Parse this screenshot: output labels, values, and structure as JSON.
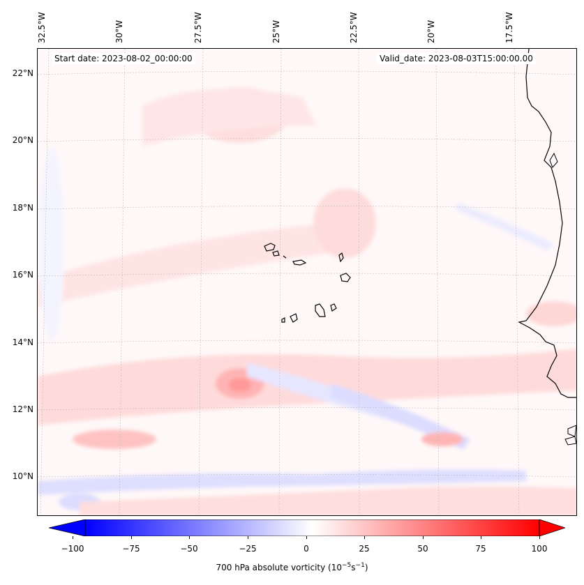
{
  "map": {
    "start_date": "Start date: 2023-08-02_00:00:00",
    "valid_date": "Valid_date: 2023-08-03T15:00:00.00",
    "longitude_labels": [
      "32.5°W",
      "30°W",
      "27.5°W",
      "25°W",
      "22.5°W",
      "20°W",
      "17.5°W"
    ],
    "latitude_labels": [
      "22°N",
      "20°N",
      "18°N",
      "16°N",
      "14°N",
      "12°N",
      "10°N"
    ]
  },
  "colorbar": {
    "ticks": [
      "−100",
      "−75",
      "−50",
      "−25",
      "0",
      "25",
      "50",
      "75",
      "100"
    ],
    "label": "700 hPa absolute vorticity (10",
    "label_exp1": "−5",
    "label_mid": "s",
    "label_exp2": "−1",
    "label_end": ")",
    "min": -100,
    "max": 100,
    "colors": {
      "negative": "#0000ff",
      "zero": "#ffffff",
      "positive": "#ff0000"
    }
  }
}
